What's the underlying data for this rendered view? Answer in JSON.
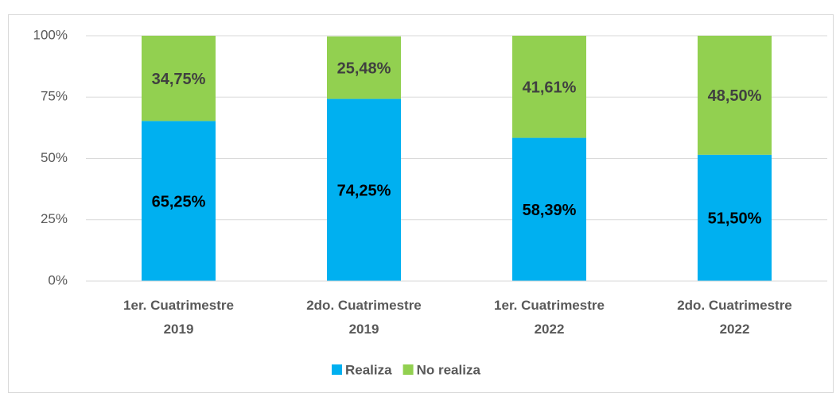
{
  "chart_data": {
    "type": "stacked_bar",
    "categories": [
      "1er. Cuatrimestre 2019",
      "2do. Cuatrimestre 2019",
      "1er. Cuatrimestre 2022",
      "2do. Cuatrimestre 2022"
    ],
    "series": [
      {
        "name": "Realiza",
        "color": "#00b0f0",
        "values": [
          65.25,
          74.25,
          58.39,
          51.5
        ],
        "value_labels": [
          "65,25%",
          "74,25%",
          "58,39%",
          "51,50%"
        ],
        "label_color": "#000000"
      },
      {
        "name": "No realiza",
        "color": "#92d050",
        "values": [
          34.75,
          25.48,
          41.61,
          48.5
        ],
        "value_labels": [
          "34,75%",
          "25,48%",
          "41,61%",
          "48,50%"
        ],
        "label_color": "#404040"
      }
    ],
    "ylim": [
      0,
      100
    ],
    "yticks": [
      {
        "value": 0,
        "label": "0%"
      },
      {
        "value": 25,
        "label": "25%"
      },
      {
        "value": 50,
        "label": "50%"
      },
      {
        "value": 75,
        "label": "75%"
      },
      {
        "value": 100,
        "label": "100%"
      }
    ],
    "grid": true,
    "legend": "bottom"
  }
}
